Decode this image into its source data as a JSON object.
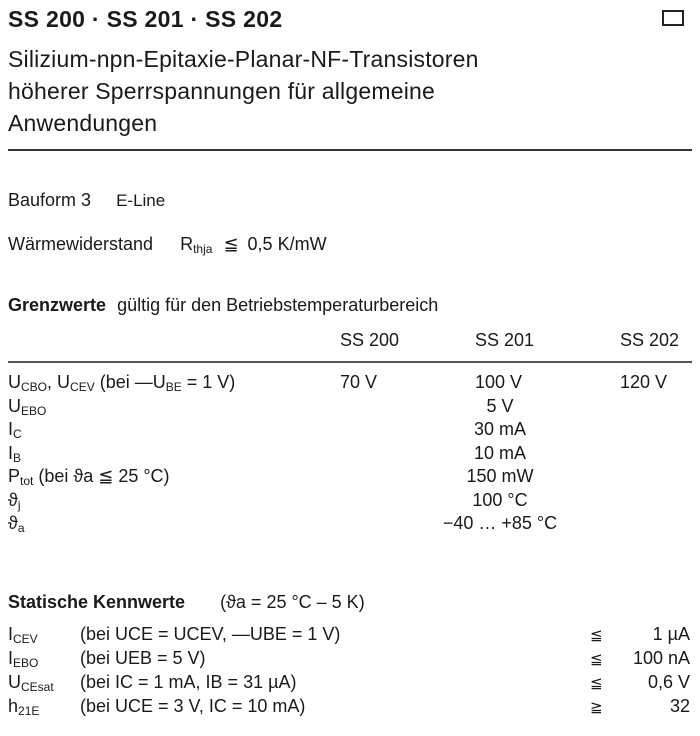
{
  "header": {
    "title": "SS 200 · SS 201 · SS 202",
    "subtitle_lines": [
      "Silizium-npn-Epitaxie-Planar-NF-Transistoren",
      "höherer Sperrspannungen für allgemeine",
      "Anwendungen"
    ]
  },
  "bauform": {
    "label": "Bauform 3",
    "value": "E-Line"
  },
  "waerme": {
    "label": "Wärmewiderstand",
    "symbol": "R",
    "symbol_sub": "thja",
    "relation": "≦",
    "value": "0,5 K/mW"
  },
  "grenzwerte": {
    "heading": "Grenzwerte",
    "heading_rest": "gültig für den Betriebstemperaturbereich",
    "columns": [
      "SS 200",
      "SS 201",
      "SS 202"
    ],
    "rows": [
      {
        "label_html": "U<sub class='s'>CBO</sub>, U<sub class='s'>CEV</sub> (bei —U<sub class='s'>BE</sub> = 1 V)",
        "label": "UCBO, UCEV (bei —UBE = 1 V)",
        "values": [
          "70 V",
          "100 V",
          "120 V"
        ]
      },
      {
        "label": "UEBO",
        "main": "U",
        "sub": "EBO",
        "value": "5 V"
      },
      {
        "label": "IC",
        "main": "I",
        "sub": "C",
        "value": "30 mA"
      },
      {
        "label": "IB",
        "main": "I",
        "sub": "B",
        "value": "10 mA"
      },
      {
        "label": "Ptot (bei ϑa ≦ 25 °C)",
        "main": "P",
        "sub": "tot",
        "rest": " (bei ϑa ≦ 25 °C)",
        "value": "150 mW"
      },
      {
        "label": "ϑj",
        "main": "ϑ",
        "sub": "j",
        "value": "100 °C"
      },
      {
        "label": "ϑa",
        "main": "ϑ",
        "sub": "a",
        "value": "−40 … +85 °C"
      }
    ]
  },
  "statische": {
    "heading": "Statische Kennwerte",
    "condition": "(ϑa = 25 °C – 5 K)",
    "rows": [
      {
        "main": "I",
        "sub": "CEV",
        "cond": "(bei UCE = UCEV, —UBE = 1 V)",
        "relation": "≦",
        "value": "1 µA"
      },
      {
        "main": "I",
        "sub": "EBO",
        "cond": "(bei UEB = 5 V)",
        "relation": "≦",
        "value": "100 nA"
      },
      {
        "main": "U",
        "sub": "CEsat",
        "cond": "(bei IC = 1 mA, IB = 31 µA)",
        "relation": "≦",
        "value": "0,6 V"
      },
      {
        "main": "h",
        "sub": "21E",
        "cond": "(bei UCE = 3 V, IC = 10 mA)",
        "relation": "≧",
        "value": "32"
      }
    ]
  }
}
